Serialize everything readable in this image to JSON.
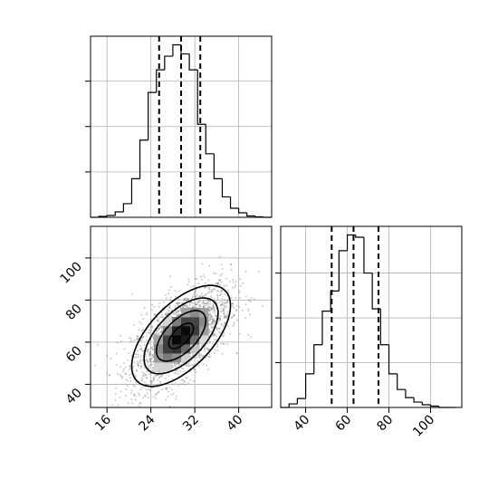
{
  "chart_data": [
    {
      "panel": "marginal-x",
      "type": "bar",
      "xlim": [
        13,
        46
      ],
      "bin_edges": [
        13,
        14.5,
        16,
        17.5,
        19,
        20.5,
        22,
        23.5,
        25,
        26.5,
        28,
        29.5,
        31,
        32.5,
        34,
        35.5,
        37,
        38.5,
        40,
        41.5,
        43,
        44.5,
        46
      ],
      "counts": [
        0,
        2,
        4,
        12,
        30,
        85,
        170,
        275,
        325,
        355,
        380,
        360,
        325,
        205,
        140,
        85,
        45,
        20,
        10,
        3,
        1,
        0
      ],
      "quantile_lines": [
        25.5,
        29.5,
        33.0
      ],
      "y_ticks_unlabeled": [
        100,
        200,
        300
      ],
      "grid": true
    },
    {
      "panel": "joint-2d",
      "type": "heatmap",
      "xlim": [
        13,
        46
      ],
      "ylim": [
        29,
        115
      ],
      "x_ticks": [
        16,
        24,
        32,
        40
      ],
      "y_ticks": [
        40,
        60,
        80,
        100
      ],
      "center": [
        29.5,
        63
      ],
      "spread": [
        4.5,
        12
      ],
      "correlation": 0.6,
      "grid": true
    },
    {
      "panel": "marginal-y",
      "type": "bar",
      "xlim": [
        28,
        115
      ],
      "x_ticks": [
        40,
        60,
        80,
        100
      ],
      "bin_edges": [
        28,
        32,
        36,
        40,
        44,
        48,
        52,
        56,
        60,
        64,
        68,
        72,
        76,
        80,
        84,
        88,
        92,
        96,
        100,
        104,
        108,
        112
      ],
      "counts": [
        0,
        8,
        20,
        75,
        140,
        215,
        260,
        350,
        385,
        380,
        300,
        220,
        140,
        75,
        40,
        22,
        12,
        6,
        3,
        0,
        0
      ],
      "quantile_lines": [
        52.5,
        63,
        75
      ],
      "y_ticks_unlabeled": [
        100,
        200,
        300
      ],
      "grid": true
    }
  ]
}
